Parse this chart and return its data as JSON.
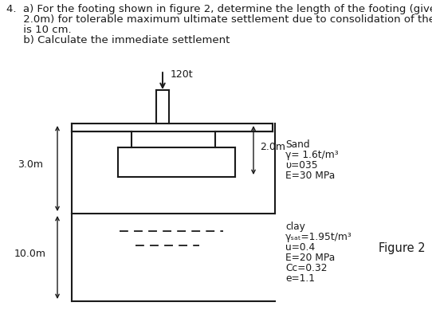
{
  "q_line1": "4.  a) For the footing shown in figure 2, determine the length of the footing (given B =",
  "q_line2": "     2.0m) for tolerable maximum ultimate settlement due to consolidation of the clay layer",
  "q_line3": "     is 10 cm.",
  "q_line4": "     b) Calculate the immediate settlement",
  "load_label": "120t",
  "depth_sand_label": "2.0m",
  "depth_total_label": "3.0m",
  "depth_clay_label": "10.0m",
  "sand_title": "Sand",
  "sand_line1": "γ= 1.6t/m³",
  "sand_line2": "υ=035",
  "sand_line3": "E=30 MPa",
  "clay_title": "clay",
  "clay_line1": "γₛₐₜ=1.95t/m³",
  "clay_line2": "u=0.4",
  "clay_line3": "E=20 MPa",
  "clay_line4": "Cc=0.32",
  "clay_line5": "e=1.1",
  "figure_label": "Figure 2",
  "bg_color": "#ffffff",
  "line_color": "#1a1a1a",
  "text_color": "#1a1a1a",
  "fs_text": 9.5,
  "fs_label": 9.0,
  "fs_props": 8.8,
  "fs_figure": 10.5
}
